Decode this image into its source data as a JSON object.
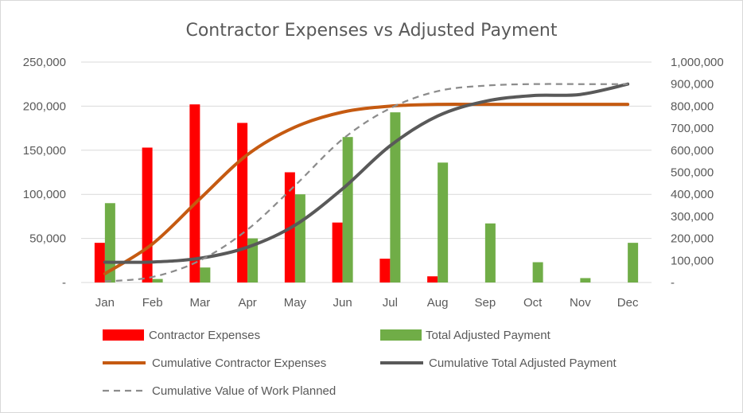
{
  "chart_data": {
    "type": "bar",
    "title": "Contractor Expenses vs Adjusted Payment",
    "categories": [
      "Jan",
      "Feb",
      "Mar",
      "Apr",
      "May",
      "Jun",
      "Jul",
      "Aug",
      "Sep",
      "Oct",
      "Nov",
      "Dec"
    ],
    "y_left": {
      "ylim": [
        0,
        250000
      ],
      "ticks": [
        0,
        50000,
        100000,
        150000,
        200000,
        250000
      ],
      "tick_labels": [
        "-",
        "50,000",
        "100,000",
        "150,000",
        "200,000",
        "250,000"
      ]
    },
    "y_right": {
      "ylim": [
        0,
        1000000
      ],
      "ticks": [
        0,
        100000,
        200000,
        300000,
        400000,
        500000,
        600000,
        700000,
        800000,
        900000,
        1000000
      ],
      "tick_labels": [
        "-",
        "100,000",
        "200,000",
        "300,000",
        "400,000",
        "500,000",
        "600,000",
        "700,000",
        "800,000",
        "900,000",
        "1,000,000"
      ]
    },
    "grid": true,
    "legend_position": "bottom",
    "series": [
      {
        "name": "Contractor Expenses",
        "kind": "bar",
        "axis": "left",
        "color": "#ff0000",
        "values": [
          45000,
          153000,
          202000,
          181000,
          125000,
          68000,
          27000,
          7000,
          0,
          0,
          0,
          0
        ]
      },
      {
        "name": "Total Adjusted Payment",
        "kind": "bar",
        "axis": "left",
        "color": "#70ad47",
        "values": [
          90000,
          4000,
          17000,
          50000,
          100000,
          165000,
          193000,
          136000,
          67000,
          23000,
          5000,
          45000
        ]
      },
      {
        "name": "Cumulative Contractor Expenses",
        "kind": "line",
        "axis": "right",
        "color": "#c55a11",
        "style": "solid",
        "values": [
          40000,
          175000,
          380000,
          580000,
          705000,
          773000,
          800000,
          808000,
          808000,
          808000,
          808000,
          808000
        ]
      },
      {
        "name": "Cumulative Total Adjusted Payment",
        "kind": "line",
        "axis": "right",
        "color": "#595959",
        "style": "solid",
        "values": [
          92000,
          93000,
          110000,
          160000,
          260000,
          425000,
          620000,
          755000,
          822000,
          848000,
          853000,
          900000
        ]
      },
      {
        "name": "Cumulative Value of Work Planned",
        "kind": "line",
        "axis": "right",
        "color": "#8c8c8c",
        "style": "dashed",
        "values": [
          5000,
          25000,
          100000,
          240000,
          440000,
          650000,
          790000,
          868000,
          893000,
          900000,
          900000,
          900000
        ]
      }
    ]
  }
}
